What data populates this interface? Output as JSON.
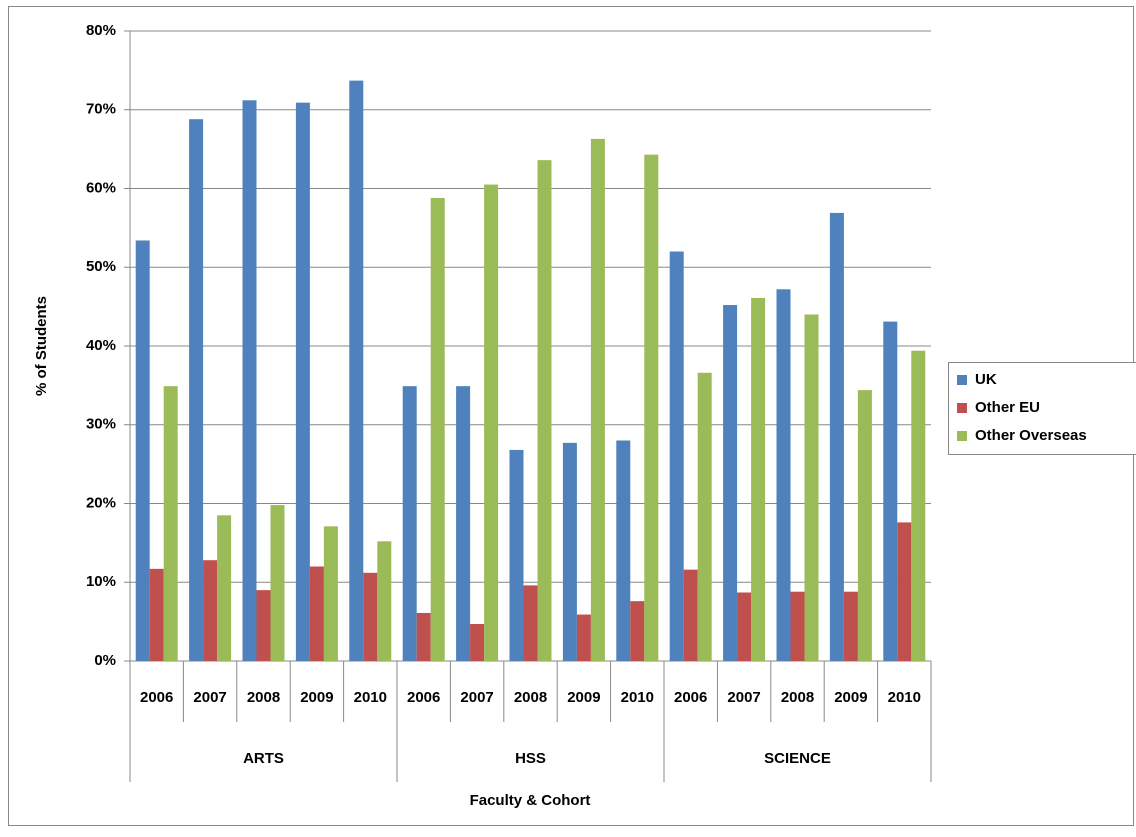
{
  "chart_data": {
    "type": "bar",
    "x_label": "Faculty & Cohort",
    "y_label": "% of Students",
    "groups": [
      {
        "name": "ARTS",
        "categories": [
          "2006",
          "2007",
          "2008",
          "2009",
          "2010"
        ]
      },
      {
        "name": "HSS",
        "categories": [
          "2006",
          "2007",
          "2008",
          "2009",
          "2010"
        ]
      },
      {
        "name": "SCIENCE",
        "categories": [
          "2006",
          "2007",
          "2008",
          "2009",
          "2010"
        ]
      }
    ],
    "series": [
      {
        "name": "UK",
        "color": "#4f81bd",
        "values": [
          53.4,
          68.8,
          71.2,
          70.9,
          73.7,
          34.9,
          34.9,
          26.8,
          27.7,
          28.0,
          52.0,
          45.2,
          47.2,
          56.9,
          43.1
        ]
      },
      {
        "name": "Other EU",
        "color": "#c0504d",
        "values": [
          11.7,
          12.8,
          9.0,
          12.0,
          11.2,
          6.1,
          4.7,
          9.6,
          5.9,
          7.6,
          11.6,
          8.7,
          8.8,
          8.8,
          17.6
        ]
      },
      {
        "name": "Other Overseas",
        "color": "#9bbb59",
        "values": [
          34.9,
          18.5,
          19.8,
          17.1,
          15.2,
          58.8,
          60.5,
          63.6,
          66.3,
          64.3,
          36.6,
          46.1,
          44.0,
          34.4,
          39.4
        ]
      }
    ],
    "ylim": [
      0,
      80
    ],
    "yticks": [
      {
        "value": 0,
        "label": "0%"
      },
      {
        "value": 10,
        "label": "10%"
      },
      {
        "value": 20,
        "label": "20%"
      },
      {
        "value": 30,
        "label": "30%"
      },
      {
        "value": 40,
        "label": "40%"
      },
      {
        "value": 50,
        "label": "50%"
      },
      {
        "value": 60,
        "label": "60%"
      },
      {
        "value": 70,
        "label": "70%"
      },
      {
        "value": 80,
        "label": "80%"
      }
    ],
    "grid": true,
    "legend": "right"
  }
}
